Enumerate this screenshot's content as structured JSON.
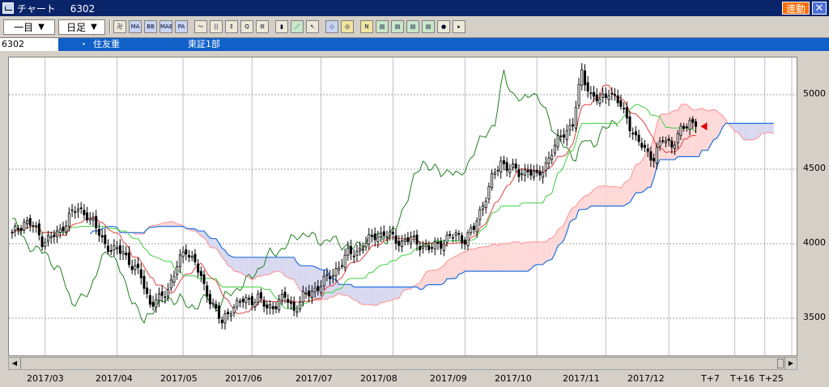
{
  "window": {
    "title": "チャート",
    "code": "6302",
    "link_badge": "連動",
    "close_label": "✕"
  },
  "toolbar": {
    "period": "一目",
    "interval": "日足",
    "tools": [
      {
        "name": "chart-type-icon",
        "label": "卍"
      },
      {
        "name": "ma-icon",
        "label": "MA"
      },
      {
        "name": "bb-icon",
        "label": "BB"
      },
      {
        "name": "mae-icon",
        "label": "MAE"
      },
      {
        "name": "pa-icon",
        "label": "PA"
      },
      {
        "name": "line-chart-icon",
        "label": "〜"
      },
      {
        "name": "candle-icon",
        "label": "||"
      },
      {
        "name": "sort-icon",
        "label": "↕"
      },
      {
        "name": "zoom-icon",
        "label": "Q"
      },
      {
        "name": "settings-icon",
        "label": "⚙"
      },
      {
        "name": "bars-icon",
        "label": "▮"
      },
      {
        "name": "pen-icon",
        "label": "／"
      },
      {
        "name": "cursor-icon",
        "label": "↖"
      },
      {
        "name": "eraser-icon",
        "label": "◇"
      },
      {
        "name": "search-icon",
        "label": "◎"
      },
      {
        "name": "fibo-icon",
        "label": "N"
      },
      {
        "name": "layout-1-icon",
        "label": "▤"
      },
      {
        "name": "layout-2-icon",
        "label": "▤"
      },
      {
        "name": "layout-3-icon",
        "label": "▤"
      },
      {
        "name": "layout-4-icon",
        "label": "▤"
      },
      {
        "name": "record-icon",
        "label": "●"
      },
      {
        "name": "play-icon",
        "label": "▸"
      }
    ]
  },
  "info": {
    "code": "6302",
    "bullet": "・",
    "name": "住友重",
    "market": "東証1部"
  },
  "chart_data": {
    "type": "candlestick",
    "indicator": "ichimoku",
    "ylim": [
      3250,
      5250
    ],
    "y_ticks": [
      3500,
      4000,
      4500,
      5000
    ],
    "x_labels": [
      "2017/03",
      "2017/04",
      "2017/05",
      "2017/06",
      "2017/07",
      "2017/08",
      "2017/09",
      "2017/10",
      "2017/11",
      "2017/12",
      "T+7",
      "T+16",
      "T+25"
    ],
    "grid": true,
    "close_anchors": [
      [
        0,
        4060
      ],
      [
        4,
        4150
      ],
      [
        7,
        4120
      ],
      [
        10,
        4020
      ],
      [
        13,
        4040
      ],
      [
        16,
        4080
      ],
      [
        19,
        4190
      ],
      [
        22,
        4230
      ],
      [
        25,
        4200
      ],
      [
        28,
        4100
      ],
      [
        31,
        4000
      ],
      [
        34,
        3950
      ],
      [
        37,
        3950
      ],
      [
        40,
        3850
      ],
      [
        43,
        3780
      ],
      [
        46,
        3600
      ],
      [
        49,
        3620
      ],
      [
        52,
        3700
      ],
      [
        55,
        3850
      ],
      [
        58,
        3960
      ],
      [
        61,
        3880
      ],
      [
        64,
        3700
      ],
      [
        67,
        3600
      ],
      [
        70,
        3460
      ],
      [
        73,
        3570
      ],
      [
        76,
        3610
      ],
      [
        79,
        3620
      ],
      [
        82,
        3640
      ],
      [
        85,
        3560
      ],
      [
        88,
        3600
      ],
      [
        91,
        3640
      ],
      [
        94,
        3560
      ],
      [
        97,
        3640
      ],
      [
        100,
        3680
      ],
      [
        103,
        3730
      ],
      [
        106,
        3780
      ],
      [
        109,
        3850
      ],
      [
        112,
        3930
      ],
      [
        115,
        3950
      ],
      [
        118,
        4000
      ],
      [
        121,
        4060
      ],
      [
        124,
        4060
      ],
      [
        127,
        4040
      ],
      [
        130,
        4010
      ],
      [
        133,
        4030
      ],
      [
        136,
        4000
      ],
      [
        139,
        3960
      ],
      [
        142,
        4000
      ],
      [
        145,
        4030
      ],
      [
        148,
        4060
      ],
      [
        151,
        4030
      ],
      [
        154,
        4100
      ],
      [
        157,
        4270
      ],
      [
        160,
        4430
      ],
      [
        163,
        4550
      ],
      [
        166,
        4510
      ],
      [
        169,
        4470
      ],
      [
        172,
        4500
      ],
      [
        175,
        4440
      ],
      [
        178,
        4540
      ],
      [
        181,
        4650
      ],
      [
        184,
        4750
      ],
      [
        187,
        4800
      ],
      [
        190,
        5150
      ],
      [
        193,
        5000
      ],
      [
        196,
        4950
      ],
      [
        199,
        5030
      ],
      [
        202,
        4950
      ],
      [
        205,
        4850
      ],
      [
        208,
        4700
      ],
      [
        211,
        4630
      ],
      [
        214,
        4580
      ],
      [
        217,
        4700
      ],
      [
        220,
        4670
      ],
      [
        223,
        4750
      ],
      [
        226,
        4820
      ],
      [
        228,
        4820
      ]
    ],
    "annotations": [
      {
        "type": "arrow",
        "text": "current price marker"
      }
    ]
  }
}
